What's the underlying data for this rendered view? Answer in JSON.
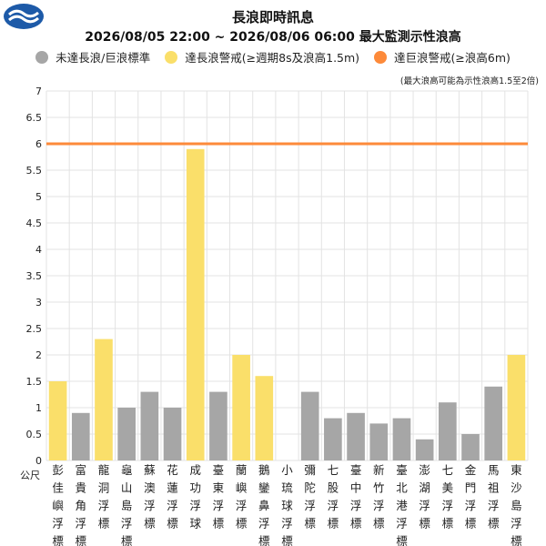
{
  "header": {
    "logo_icon": "cwa-logo-icon",
    "title": "長浪即時訊息",
    "subtitle": "2026/08/05 22:00 ~ 2026/08/06 06:00 最大監測示性浪高"
  },
  "legend": [
    {
      "label": "未達長浪/巨浪標準",
      "color": "#a6a6a6"
    },
    {
      "label": "達長浪警戒(≥週期8s及浪高1.5m)",
      "color": "#fadf6a"
    },
    {
      "label": "達巨浪警戒(≥浪高6m)",
      "color": "#fd8a3a"
    }
  ],
  "note": "(最大浪高可能為示性浪高1.5至2倍)",
  "chart_data": {
    "type": "bar",
    "ylabel": "公尺",
    "ylim": [
      0,
      7
    ],
    "yticks": [
      "0",
      "0.5",
      "1",
      "1.5",
      "2",
      "2.5",
      "3",
      "3.5",
      "4",
      "4.5",
      "5",
      "5.5",
      "6",
      "6.5",
      "7"
    ],
    "threshold": {
      "value": 6,
      "color": "#fd8a3a"
    },
    "grid": true,
    "categories": [
      "彭佳嶼浮標",
      "富貴角浮標",
      "龍洞浮標",
      "龜山島浮標",
      "蘇澳浮標",
      "花蓮浮標",
      "成功浮球",
      "臺東浮標",
      "蘭嶼浮標",
      "鵝鑾鼻浮標",
      "小琉球浮標",
      "彌陀浮標",
      "七股浮標",
      "臺中浮標",
      "新竹浮標",
      "臺北港浮標",
      "澎湖浮標",
      "七美浮標",
      "金門浮標",
      "馬祖浮標",
      "東沙島浮標"
    ],
    "values": [
      1.5,
      0.9,
      2.3,
      1.0,
      1.3,
      1.0,
      5.9,
      1.3,
      2.0,
      1.6,
      null,
      1.3,
      0.8,
      0.9,
      0.7,
      0.8,
      0.4,
      1.1,
      0.5,
      1.4,
      2.0
    ],
    "status": [
      "warn",
      "normal",
      "warn",
      "normal",
      "normal",
      "normal",
      "warn",
      "normal",
      "warn",
      "warn",
      "none",
      "normal",
      "normal",
      "normal",
      "normal",
      "normal",
      "normal",
      "normal",
      "normal",
      "normal",
      "warn"
    ],
    "colors": {
      "normal": "#a6a6a6",
      "warn": "#fadf6a",
      "danger": "#fd8a3a"
    }
  }
}
